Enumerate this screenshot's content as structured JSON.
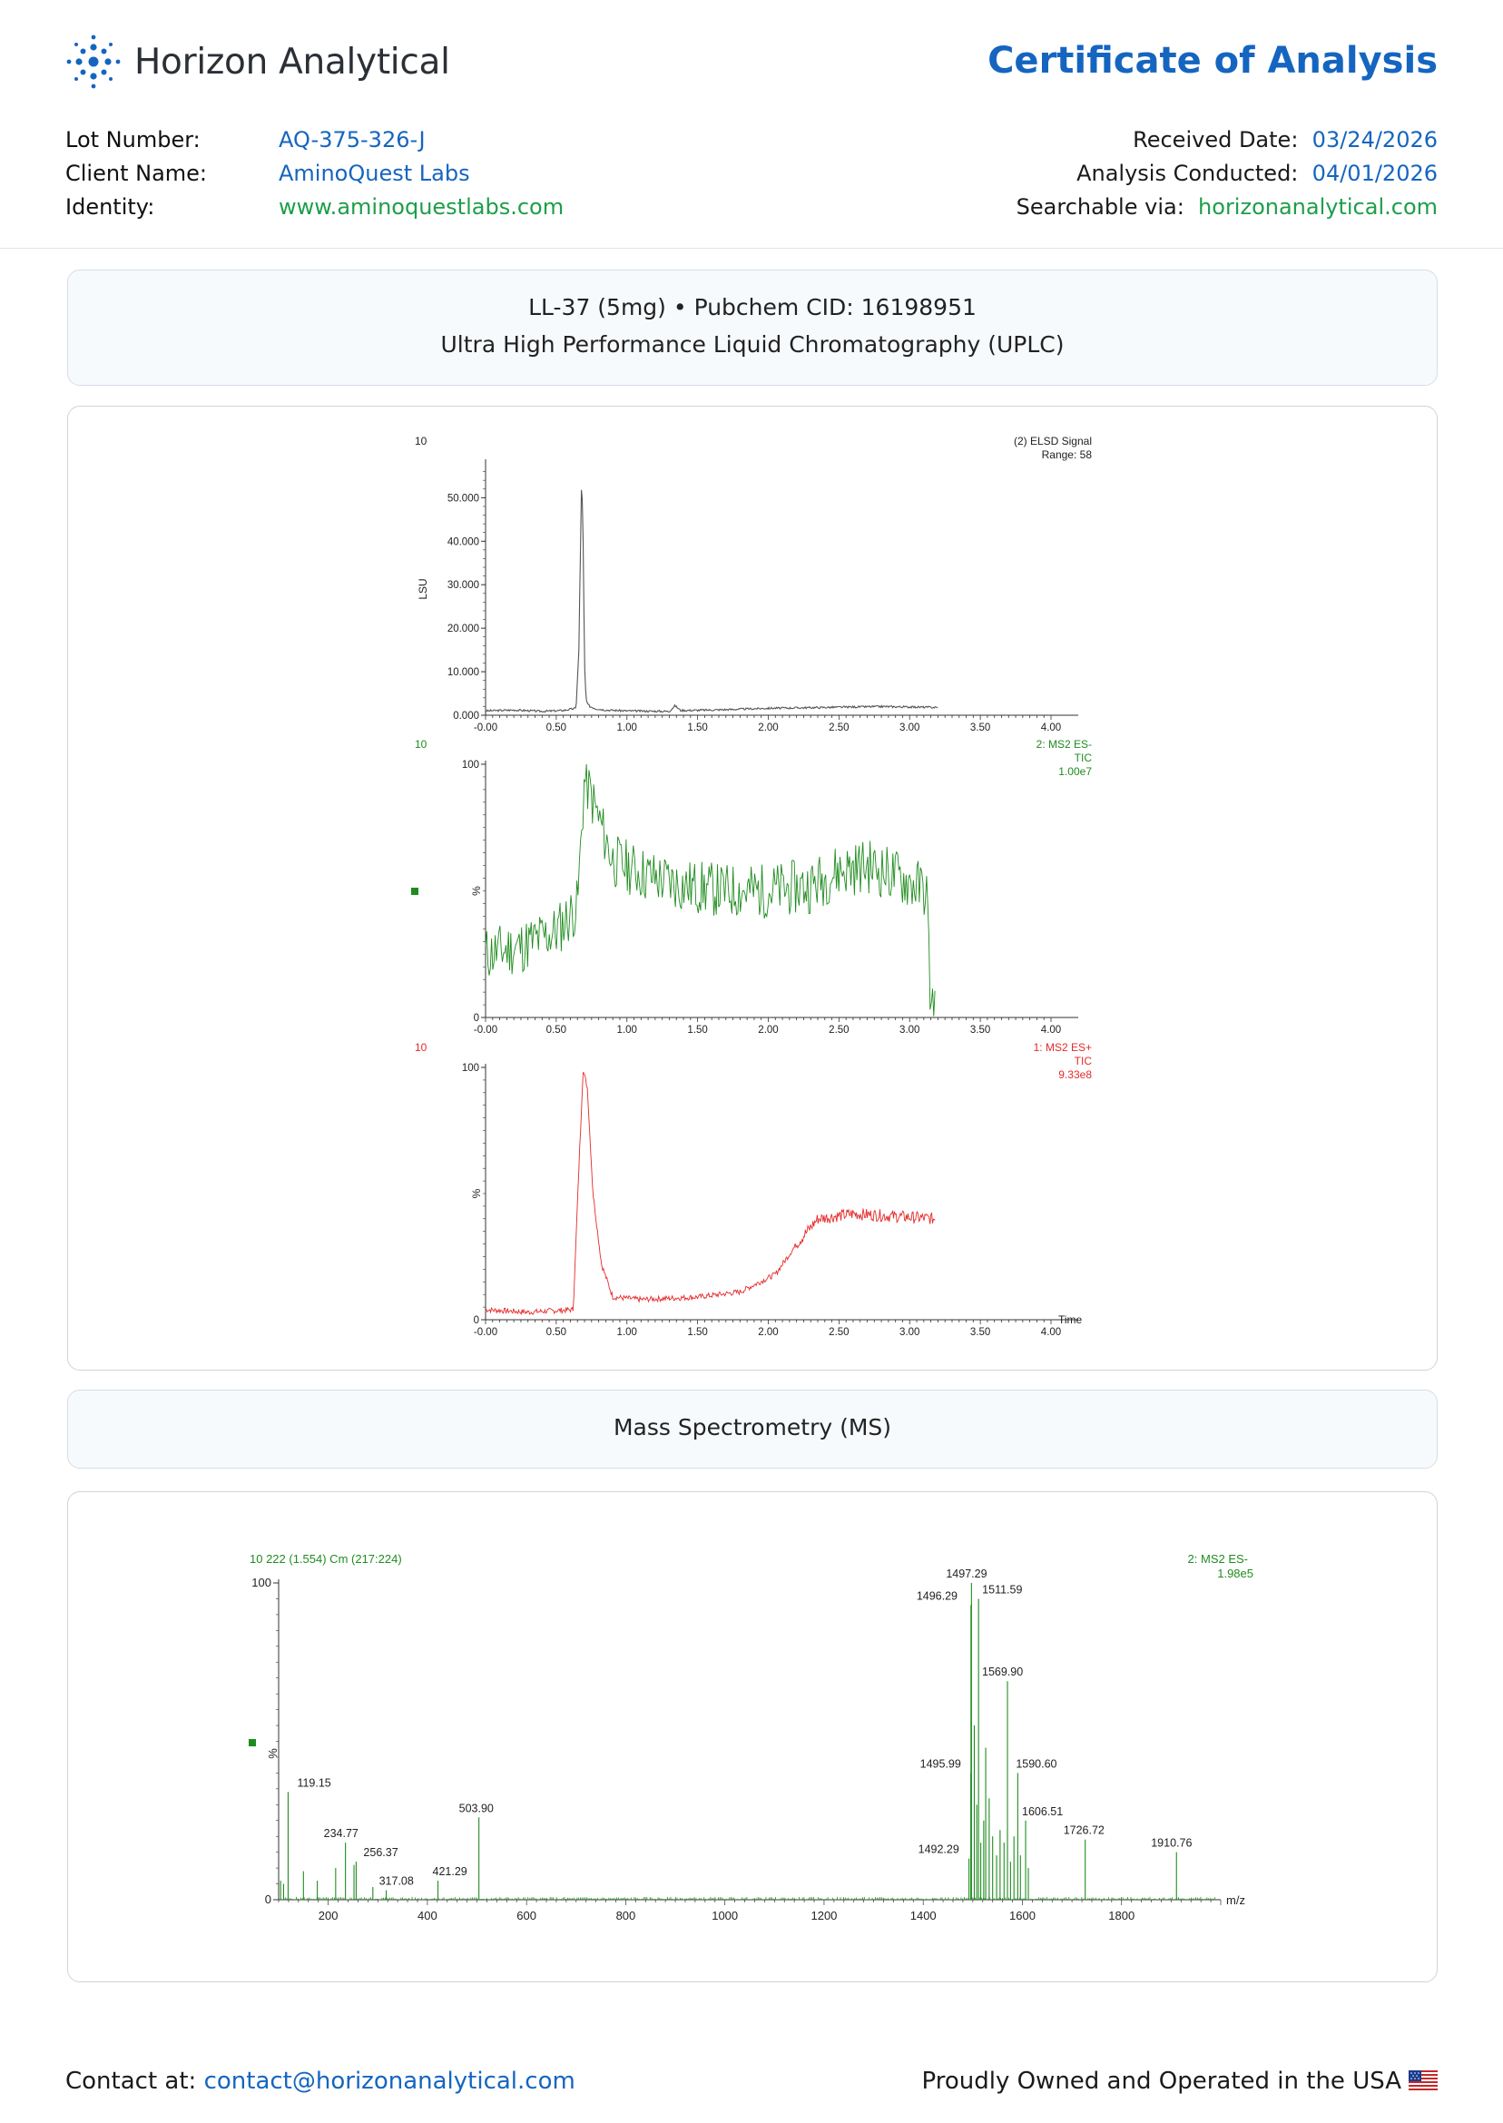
{
  "header": {
    "brand": "Horizon Analytical",
    "title": "Certificate of Analysis"
  },
  "meta_left": [
    {
      "label": "Lot Number:",
      "value": "AQ-375-326-J"
    },
    {
      "label": "Client Name:",
      "value": "AminoQuest Labs"
    },
    {
      "label": "Identity:",
      "value": "www.aminoquestlabs.com"
    }
  ],
  "meta_right": [
    {
      "label": "Received Date:",
      "value": "03/24/2026"
    },
    {
      "label": "Analysis Conducted:",
      "value": "04/01/2026"
    },
    {
      "label": "Searchable via:",
      "value": "horizonanalytical.com"
    }
  ],
  "uplc_panel": {
    "line1": "LL-37 (5mg) • Pubchem CID: 16198951",
    "line2": "Ultra High Performance Liquid Chromatography (UPLC)"
  },
  "ms_panel": {
    "title": "Mass Spectrometry (MS)"
  },
  "footer": {
    "contact_label": "Contact at:",
    "contact_email": "contact@horizonanalytical.com",
    "made_in": "Proudly Owned and Operated in the USA"
  },
  "colors": {
    "brand_blue": "#1565c0",
    "link_green": "#1e9e4a",
    "elsd": "#555555",
    "ms_neg": "#1f8c1f",
    "ms_pos": "#e52a2a"
  },
  "chart_data": [
    {
      "type": "line",
      "title": "(2) ELSD Signal",
      "subtitle": "Range: 58",
      "corner_label": "10",
      "ylabel": "LSU",
      "xlim": [
        0,
        4.0
      ],
      "ylim": [
        0,
        58000
      ],
      "yticks": [
        "0.000",
        "10.000",
        "20.000",
        "30.000",
        "40.000",
        "50.000"
      ],
      "xticks": [
        "-0.00",
        "0.50",
        "1.00",
        "1.50",
        "2.00",
        "2.50",
        "3.00",
        "3.50",
        "4.00"
      ],
      "series": [
        {
          "x": [
            0.0,
            0.2,
            0.4,
            0.55,
            0.64,
            0.66,
            0.68,
            0.69,
            0.7,
            0.71,
            0.72,
            0.74,
            0.78,
            0.85,
            1.0,
            1.3,
            1.34,
            1.38,
            1.6,
            2.0,
            2.4,
            2.8,
            3.2
          ],
          "y": [
            1000,
            1200,
            900,
            1100,
            1600,
            15000,
            56000,
            40000,
            12000,
            4000,
            2600,
            2000,
            1500,
            1200,
            1000,
            900,
            2200,
            1100,
            1200,
            1600,
            1800,
            2000,
            1800
          ]
        }
      ]
    },
    {
      "type": "line",
      "title": "2: MS2 ES-",
      "subtitle": "TIC",
      "intensity": "1.00e7",
      "corner_label": "10",
      "ylabel": "%",
      "xlim": [
        0,
        4.0
      ],
      "ylim": [
        0,
        100
      ],
      "yticks": [
        "0",
        "100"
      ],
      "xticks": [
        "-0.00",
        "0.50",
        "1.00",
        "1.50",
        "2.00",
        "2.50",
        "3.00",
        "3.50",
        "4.00"
      ],
      "series": [
        {
          "x": [
            0.0,
            0.25,
            0.5,
            0.65,
            0.7,
            0.9,
            1.15,
            1.4,
            1.7,
            2.0,
            2.3,
            2.5,
            2.7,
            2.9,
            3.05,
            3.12,
            3.15,
            3.18
          ],
          "y": [
            25,
            28,
            34,
            44,
            95,
            62,
            56,
            52,
            50,
            50,
            52,
            58,
            60,
            56,
            52,
            50,
            4,
            5
          ]
        }
      ]
    },
    {
      "type": "line",
      "title": "1: MS2 ES+",
      "subtitle": "TIC",
      "intensity": "9.33e8",
      "corner_label": "10",
      "ylabel": "%",
      "xlabel": "Time",
      "xlim": [
        0,
        4.0
      ],
      "ylim": [
        0,
        100
      ],
      "yticks": [
        "0",
        "100"
      ],
      "xticks": [
        "-0.00",
        "0.50",
        "1.00",
        "1.50",
        "2.00",
        "2.50",
        "3.00",
        "3.50",
        "4.00"
      ],
      "series": [
        {
          "x": [
            0.0,
            0.3,
            0.62,
            0.66,
            0.69,
            0.72,
            0.76,
            0.82,
            0.9,
            1.1,
            1.5,
            1.8,
            2.05,
            2.2,
            2.35,
            2.6,
            2.9,
            3.18
          ],
          "y": [
            4,
            3,
            4,
            60,
            99,
            92,
            50,
            22,
            9,
            8,
            9,
            11,
            18,
            30,
            40,
            42,
            41,
            40
          ]
        }
      ]
    },
    {
      "type": "bar",
      "title": "10 222 (1.554) Cm (217:224)",
      "series_label": "2: MS2 ES-",
      "intensity": "1.98e5",
      "xlabel": "m/z",
      "ylabel": "%",
      "xlim": [
        100,
        2000
      ],
      "ylim": [
        0,
        100
      ],
      "yticks": [
        "0",
        "100"
      ],
      "xticks": [
        "200",
        "400",
        "600",
        "800",
        "1000",
        "1200",
        "1400",
        "1600",
        "1800"
      ],
      "peaks": [
        {
          "mz": 104.0,
          "intensity": 6
        },
        {
          "mz": 110.0,
          "intensity": 5
        },
        {
          "mz": 119.15,
          "intensity": 34,
          "label": "119.15"
        },
        {
          "mz": 150.0,
          "intensity": 9
        },
        {
          "mz": 178.0,
          "intensity": 6
        },
        {
          "mz": 215.0,
          "intensity": 10
        },
        {
          "mz": 234.77,
          "intensity": 18,
          "label": "234.77"
        },
        {
          "mz": 252.0,
          "intensity": 11
        },
        {
          "mz": 256.37,
          "intensity": 12,
          "label": "256.37"
        },
        {
          "mz": 290.0,
          "intensity": 4
        },
        {
          "mz": 317.08,
          "intensity": 3,
          "label": "317.08"
        },
        {
          "mz": 421.29,
          "intensity": 6,
          "label": "421.29"
        },
        {
          "mz": 503.9,
          "intensity": 26,
          "label": "503.90"
        },
        {
          "mz": 1492.29,
          "intensity": 13,
          "label": "1492.29"
        },
        {
          "mz": 1495.99,
          "intensity": 40,
          "label": "1495.99"
        },
        {
          "mz": 1496.29,
          "intensity": 93,
          "label": "1496.29"
        },
        {
          "mz": 1497.29,
          "intensity": 100,
          "label": "1497.29"
        },
        {
          "mz": 1503.0,
          "intensity": 55
        },
        {
          "mz": 1508.0,
          "intensity": 30
        },
        {
          "mz": 1511.59,
          "intensity": 95,
          "label": "1511.59"
        },
        {
          "mz": 1516.0,
          "intensity": 18
        },
        {
          "mz": 1522.0,
          "intensity": 25
        },
        {
          "mz": 1526.0,
          "intensity": 48
        },
        {
          "mz": 1533.0,
          "intensity": 32
        },
        {
          "mz": 1540.0,
          "intensity": 20
        },
        {
          "mz": 1548.0,
          "intensity": 14
        },
        {
          "mz": 1555.0,
          "intensity": 22
        },
        {
          "mz": 1563.0,
          "intensity": 18
        },
        {
          "mz": 1569.9,
          "intensity": 69,
          "label": "1569.90"
        },
        {
          "mz": 1576.0,
          "intensity": 12
        },
        {
          "mz": 1583.0,
          "intensity": 20
        },
        {
          "mz": 1590.6,
          "intensity": 40,
          "label": "1590.60"
        },
        {
          "mz": 1596.0,
          "intensity": 14
        },
        {
          "mz": 1606.51,
          "intensity": 25,
          "label": "1606.51"
        },
        {
          "mz": 1612.0,
          "intensity": 10
        },
        {
          "mz": 1726.72,
          "intensity": 19,
          "label": "1726.72"
        },
        {
          "mz": 1910.76,
          "intensity": 15,
          "label": "1910.76"
        }
      ]
    }
  ]
}
